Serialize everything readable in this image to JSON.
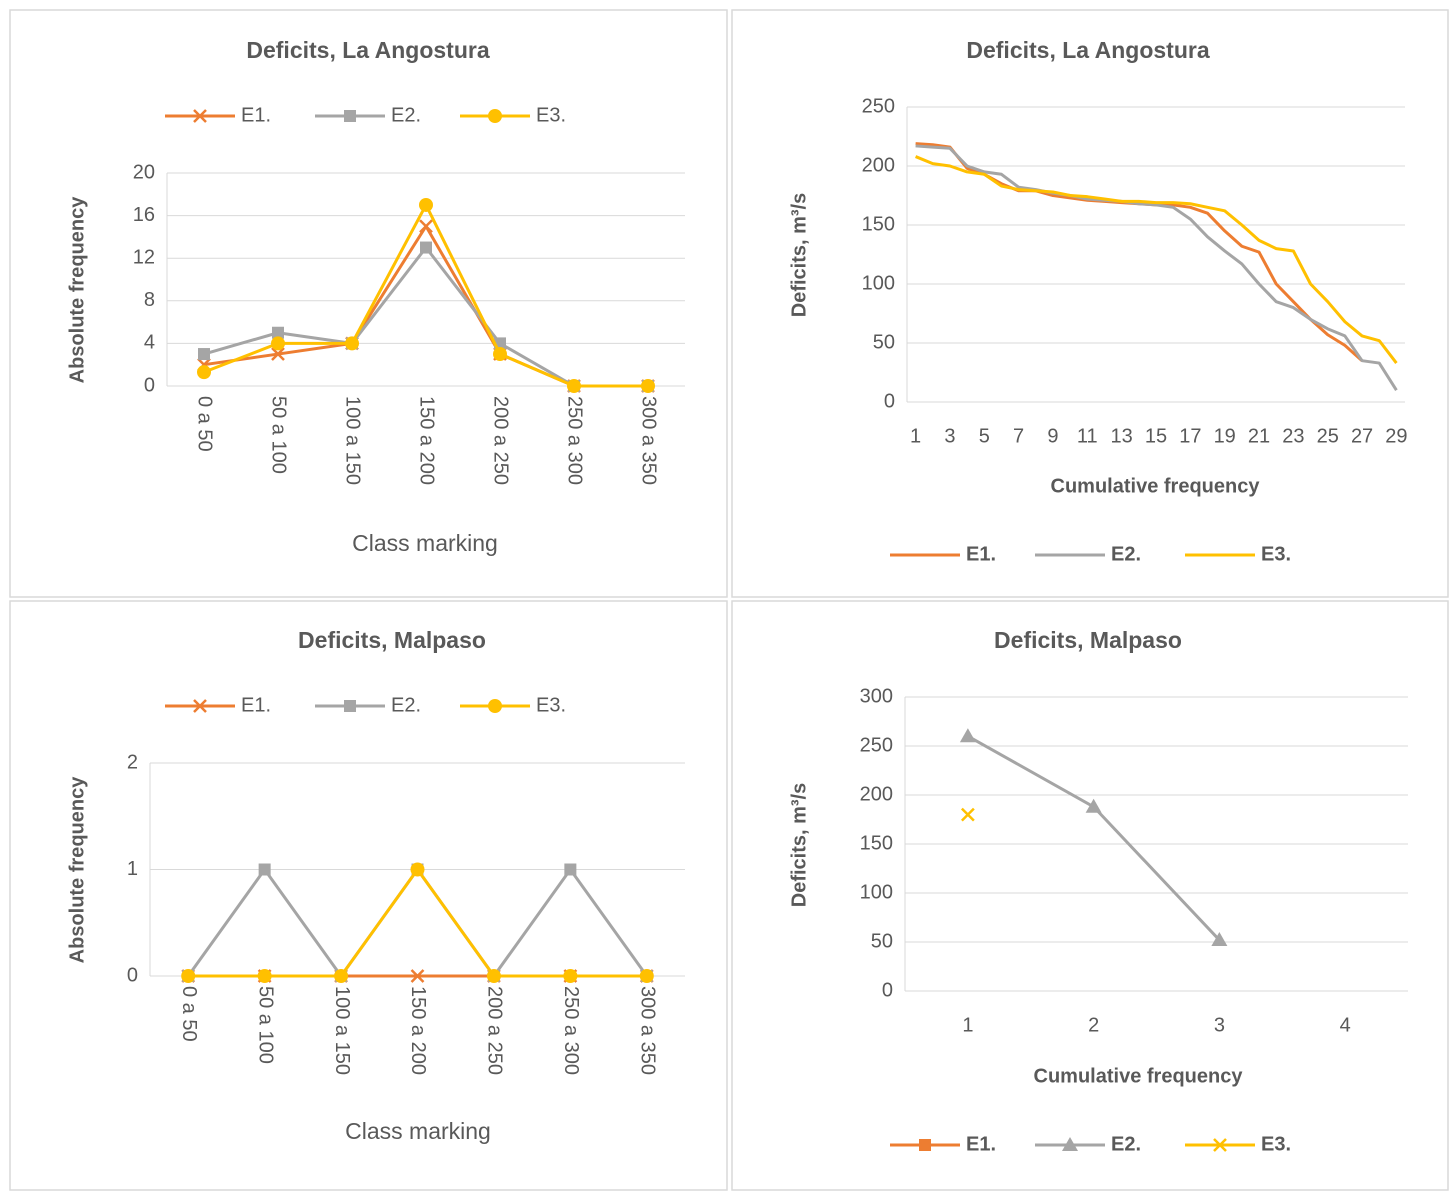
{
  "chart_data": [
    {
      "type": "line",
      "title": "Deficits, La Angostura",
      "x_label": "Class marking",
      "y_label": "Absolute frequency",
      "categories": [
        "0 a 50",
        "50 a 100",
        "100 a 150",
        "150 a 200",
        "200 a 250",
        "250 a 300",
        "300 a 350"
      ],
      "series": [
        {
          "name": "E1.",
          "color": "#ed7d31",
          "marker": "x",
          "values": [
            2,
            3,
            4,
            15,
            3,
            0,
            0
          ]
        },
        {
          "name": "E2.",
          "color": "#a5a5a5",
          "marker": "square",
          "values": [
            3,
            5,
            4,
            13,
            4,
            0,
            0
          ]
        },
        {
          "name": "E3.",
          "color": "#ffc000",
          "marker": "circle",
          "values": [
            1.3,
            4,
            4,
            17,
            3,
            0,
            0
          ]
        }
      ],
      "ylim": [
        0,
        20
      ],
      "yticks": [
        0,
        4,
        8,
        12,
        16,
        20
      ],
      "grid": true,
      "legend": "top"
    },
    {
      "type": "line",
      "title": "Deficits, La Angostura",
      "x_label": "Cumulative frequency",
      "y_label": "Deficits, m³/s",
      "x": [
        1,
        2,
        3,
        4,
        5,
        6,
        7,
        8,
        9,
        10,
        11,
        12,
        13,
        14,
        15,
        16,
        17,
        18,
        19,
        20,
        21,
        22,
        23,
        24,
        25,
        26,
        27,
        28,
        29
      ],
      "xlim": [
        0.5,
        29.5
      ],
      "xticks": [
        1,
        3,
        5,
        7,
        9,
        11,
        13,
        15,
        17,
        19,
        21,
        23,
        25,
        27,
        29
      ],
      "series": [
        {
          "name": "E1.",
          "color": "#ed7d31",
          "values": [
            219,
            218,
            216,
            198,
            193,
            185,
            179,
            179,
            175,
            173,
            171,
            170,
            169,
            168,
            167,
            167,
            165,
            160,
            145,
            132,
            127,
            100,
            85,
            70,
            57,
            48,
            35,
            null,
            null
          ]
        },
        {
          "name": "E2.",
          "color": "#a5a5a5",
          "values": [
            217,
            216,
            215,
            200,
            195,
            193,
            182,
            180,
            177,
            175,
            172,
            171,
            170,
            168,
            167,
            165,
            155,
            140,
            128,
            117,
            100,
            85,
            80,
            70,
            62,
            56,
            35,
            33,
            10
          ]
        },
        {
          "name": "E3.",
          "color": "#ffc000",
          "values": [
            208,
            202,
            200,
            195,
            193,
            183,
            180,
            179,
            178,
            175,
            174,
            172,
            170,
            170,
            169,
            169,
            168,
            165,
            162,
            150,
            137,
            130,
            128,
            100,
            85,
            68,
            56,
            52,
            33
          ]
        }
      ],
      "ylim": [
        0,
        250
      ],
      "yticks": [
        0,
        50,
        100,
        150,
        200,
        250
      ],
      "grid": true,
      "legend": "bottom"
    },
    {
      "type": "line",
      "title": "Deficits, Malpaso",
      "x_label": "Class marking",
      "y_label": "Absolute frequency",
      "categories": [
        "0 a 50",
        "50 a 100",
        "100 a 150",
        "150 a 200",
        "200 a 250",
        "250 a 300",
        "300 a 350"
      ],
      "series": [
        {
          "name": "E1.",
          "color": "#ed7d31",
          "marker": "x",
          "values": [
            0,
            0,
            0,
            0,
            0,
            0,
            0
          ]
        },
        {
          "name": "E2.",
          "color": "#a5a5a5",
          "marker": "square",
          "values": [
            0,
            1,
            0,
            1,
            0,
            1,
            0
          ]
        },
        {
          "name": "E3.",
          "color": "#ffc000",
          "marker": "circle",
          "values": [
            0,
            0,
            0,
            1,
            0,
            0,
            0
          ]
        }
      ],
      "ylim": [
        0,
        2
      ],
      "yticks": [
        0,
        1,
        2
      ],
      "grid": true,
      "legend": "top"
    },
    {
      "type": "line",
      "title": "Deficits, Malpaso",
      "x_label": "Cumulative frequency",
      "y_label": "Deficits, m³/s",
      "x": [
        1,
        2,
        3,
        4
      ],
      "xlim": [
        0.5,
        4.5
      ],
      "xticks": [
        1,
        2,
        3,
        4
      ],
      "series": [
        {
          "name": "E1.",
          "color": "#ed7d31",
          "marker": "square",
          "values": [
            null,
            null,
            null,
            null
          ]
        },
        {
          "name": "E2.",
          "color": "#a5a5a5",
          "marker": "triangle",
          "values": [
            260,
            188,
            52,
            null
          ]
        },
        {
          "name": "E3.",
          "color": "#ffc000",
          "marker": "x",
          "values": [
            180,
            null,
            null,
            null
          ]
        }
      ],
      "ylim": [
        0,
        300
      ],
      "yticks": [
        0,
        50,
        100,
        150,
        200,
        250,
        300
      ],
      "grid": true,
      "legend": "bottom"
    }
  ]
}
